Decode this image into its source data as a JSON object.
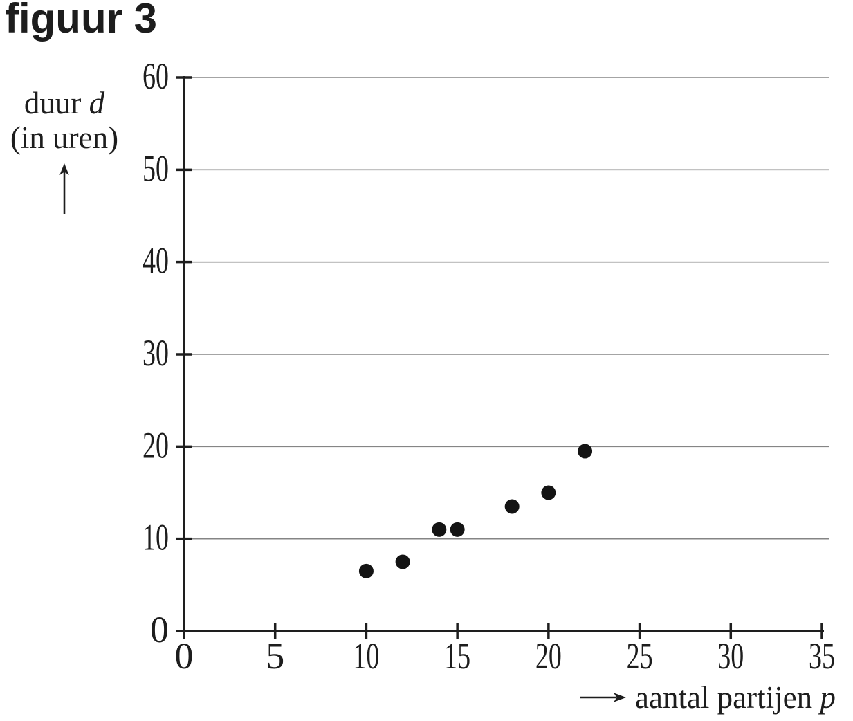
{
  "figure_title": "figuur 3",
  "colors": {
    "background": "#ffffff",
    "axis": "#1e1e1e",
    "grid": "#858585",
    "point": "#141414",
    "text": "#1d1d1d"
  },
  "y_axis_label": {
    "word": "duur",
    "variable": "d",
    "unit": "(in uren)"
  },
  "x_axis_label": {
    "word": "aantal partijen",
    "variable": "p"
  },
  "chart_data": {
    "type": "scatter",
    "title": "figuur 3",
    "xlabel": "aantal partijen p",
    "ylabel": "duur d (in uren)",
    "xlim": [
      0,
      35
    ],
    "ylim": [
      0,
      60
    ],
    "x_ticks": [
      0,
      5,
      10,
      15,
      20,
      25,
      30,
      35
    ],
    "y_ticks": [
      0,
      10,
      20,
      30,
      40,
      50,
      60
    ],
    "grid": "horizontal gridlines at every y tick (10..60)",
    "legend": "none",
    "points": [
      {
        "p": 10,
        "d": 6.5
      },
      {
        "p": 12,
        "d": 7.5
      },
      {
        "p": 14,
        "d": 11
      },
      {
        "p": 15,
        "d": 11
      },
      {
        "p": 18,
        "d": 13.5
      },
      {
        "p": 20,
        "d": 15
      },
      {
        "p": 22,
        "d": 19.5
      }
    ]
  }
}
